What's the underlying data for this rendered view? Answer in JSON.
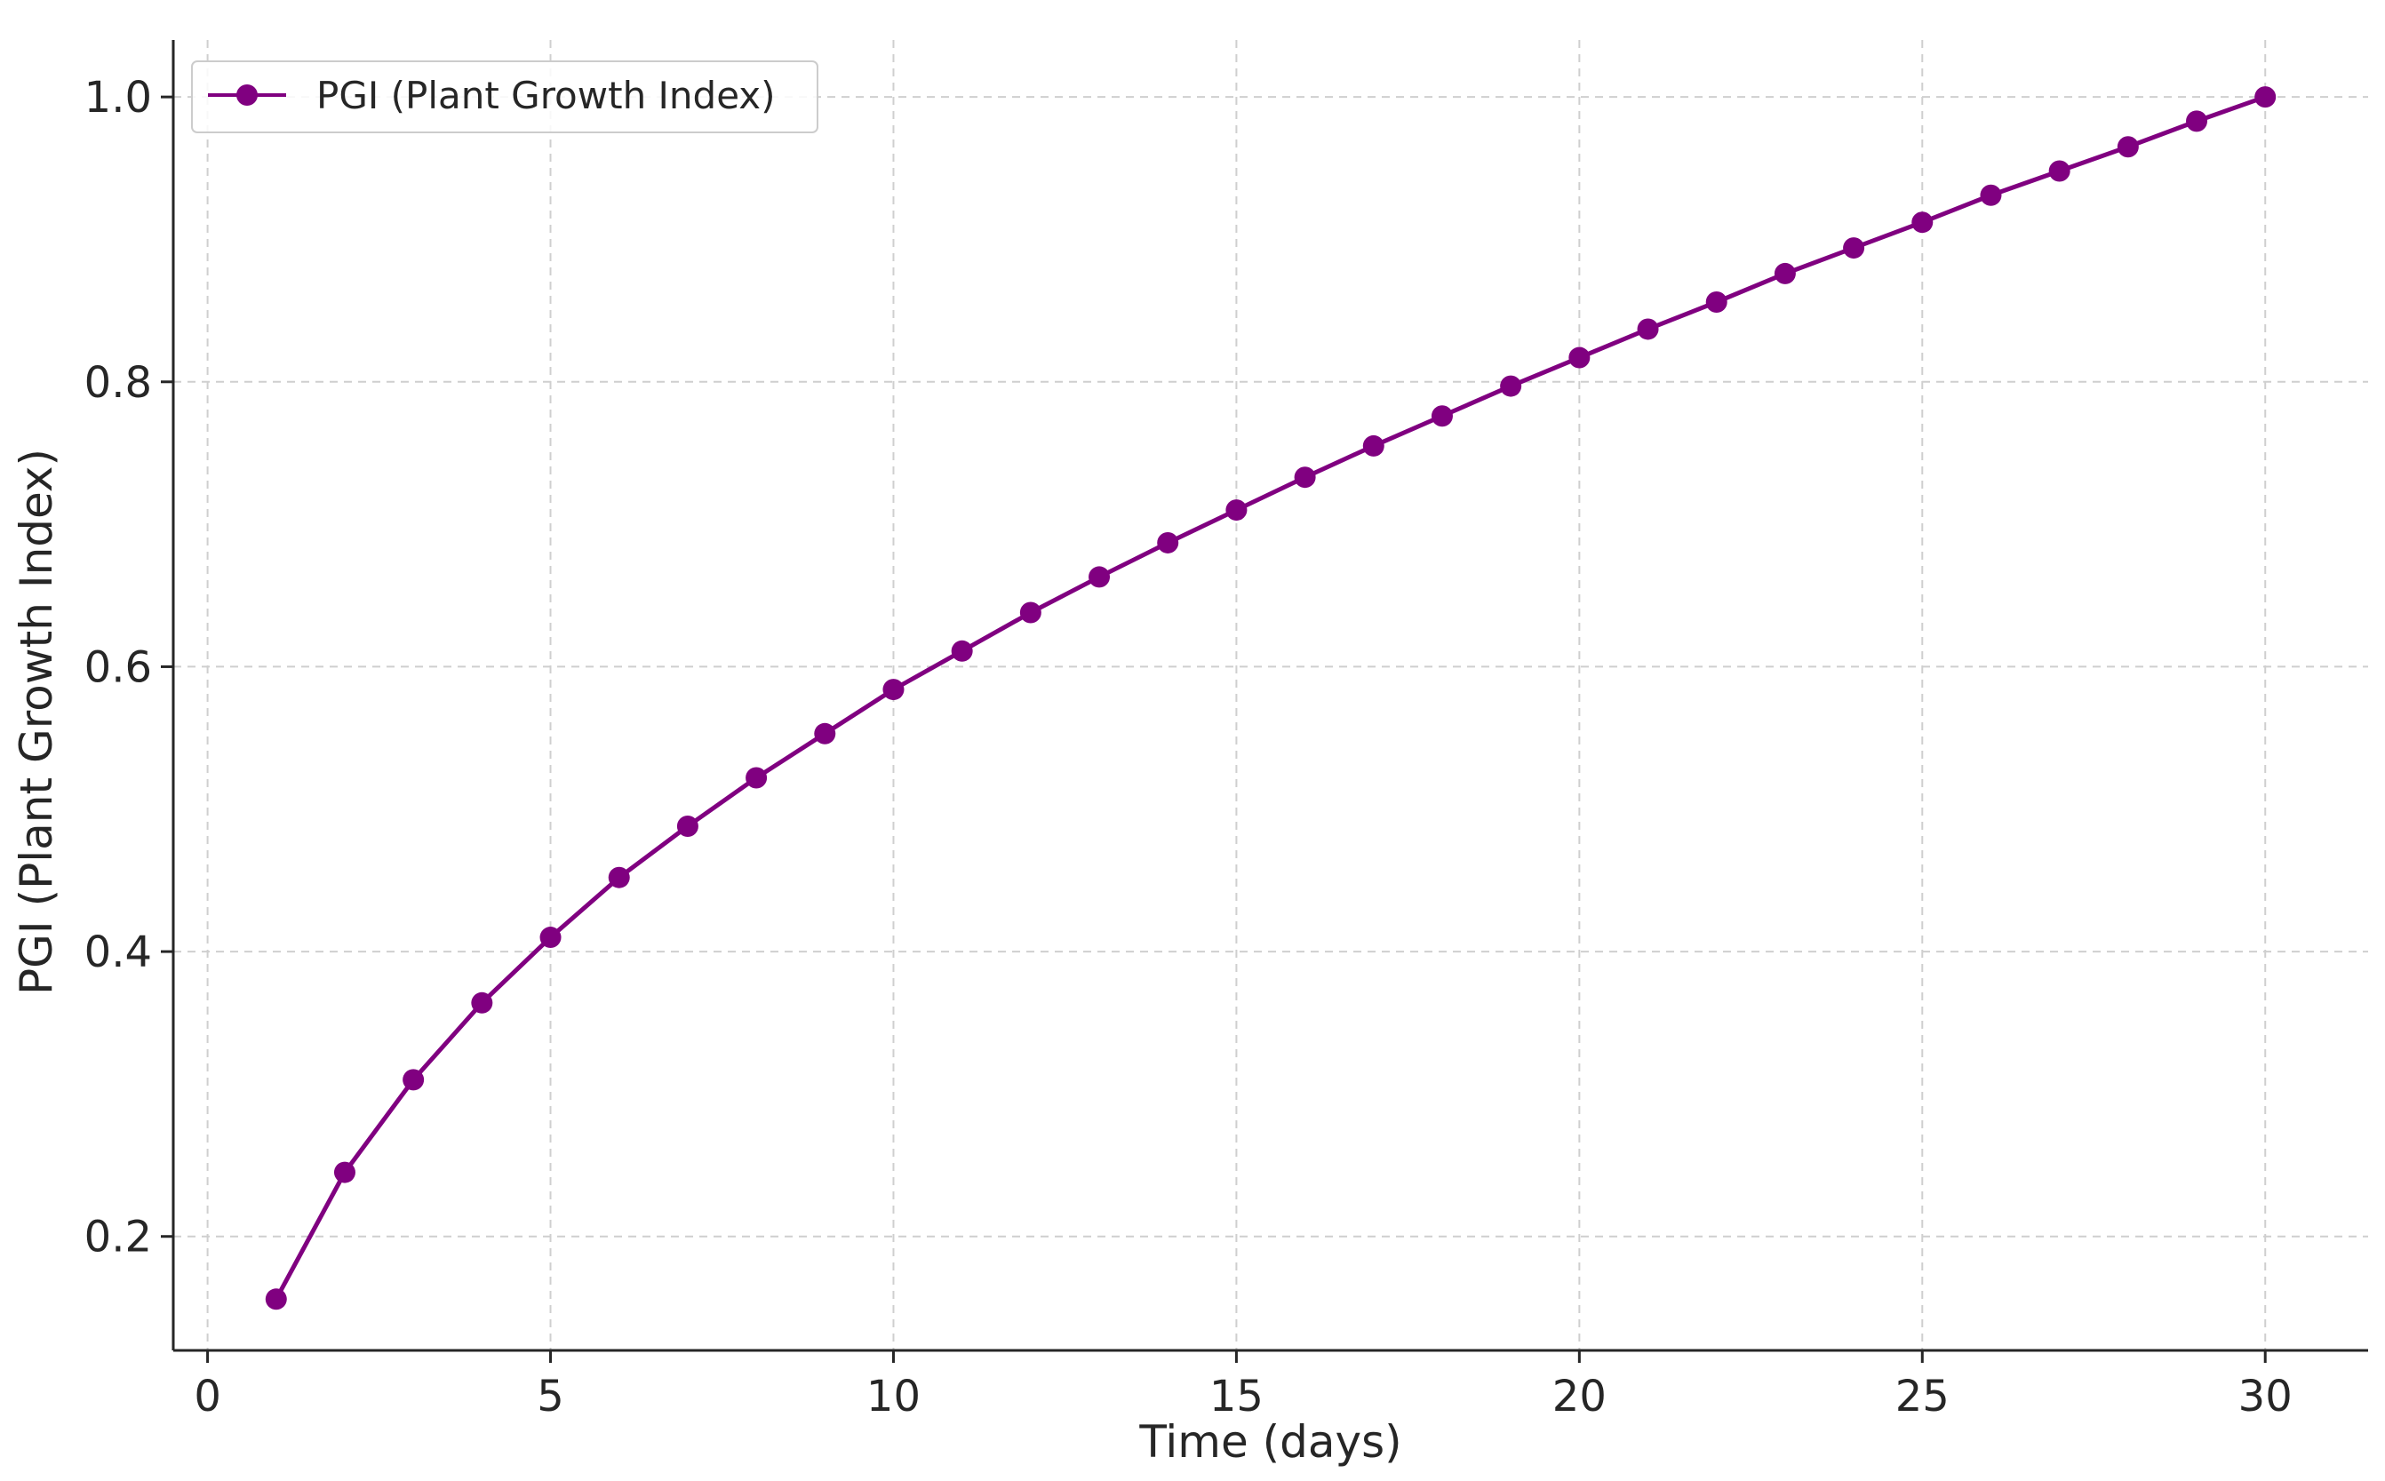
{
  "chart_data": {
    "type": "line",
    "title": "",
    "xlabel": "Time (days)",
    "ylabel": "PGI (Plant Growth Index)",
    "xlim": [
      -0.5,
      31.5
    ],
    "ylim": [
      0.12,
      1.04
    ],
    "xticks": [
      0,
      5,
      10,
      15,
      20,
      25,
      30
    ],
    "xtick_labels": [
      "0",
      "5",
      "10",
      "15",
      "20",
      "25",
      "30"
    ],
    "yticks": [
      0.2,
      0.4,
      0.6,
      0.8,
      1.0
    ],
    "ytick_labels": [
      "0.2",
      "0.4",
      "0.6",
      "0.8",
      "1.0"
    ],
    "grid": true,
    "legend_position": "top-left",
    "series": [
      {
        "name": "PGI (Plant Growth Index)",
        "color": "#800080",
        "marker": "circle",
        "x": [
          1,
          2,
          3,
          4,
          5,
          6,
          7,
          8,
          9,
          10,
          11,
          12,
          13,
          14,
          15,
          16,
          17,
          18,
          19,
          20,
          21,
          22,
          23,
          24,
          25,
          26,
          27,
          28,
          29,
          30
        ],
        "y": [
          0.156,
          0.245,
          0.31,
          0.364,
          0.41,
          0.452,
          0.488,
          0.522,
          0.553,
          0.584,
          0.611,
          0.638,
          0.663,
          0.687,
          0.71,
          0.733,
          0.755,
          0.776,
          0.797,
          0.817,
          0.837,
          0.856,
          0.876,
          0.894,
          0.912,
          0.931,
          0.948,
          0.965,
          0.983,
          1.0
        ]
      }
    ]
  }
}
